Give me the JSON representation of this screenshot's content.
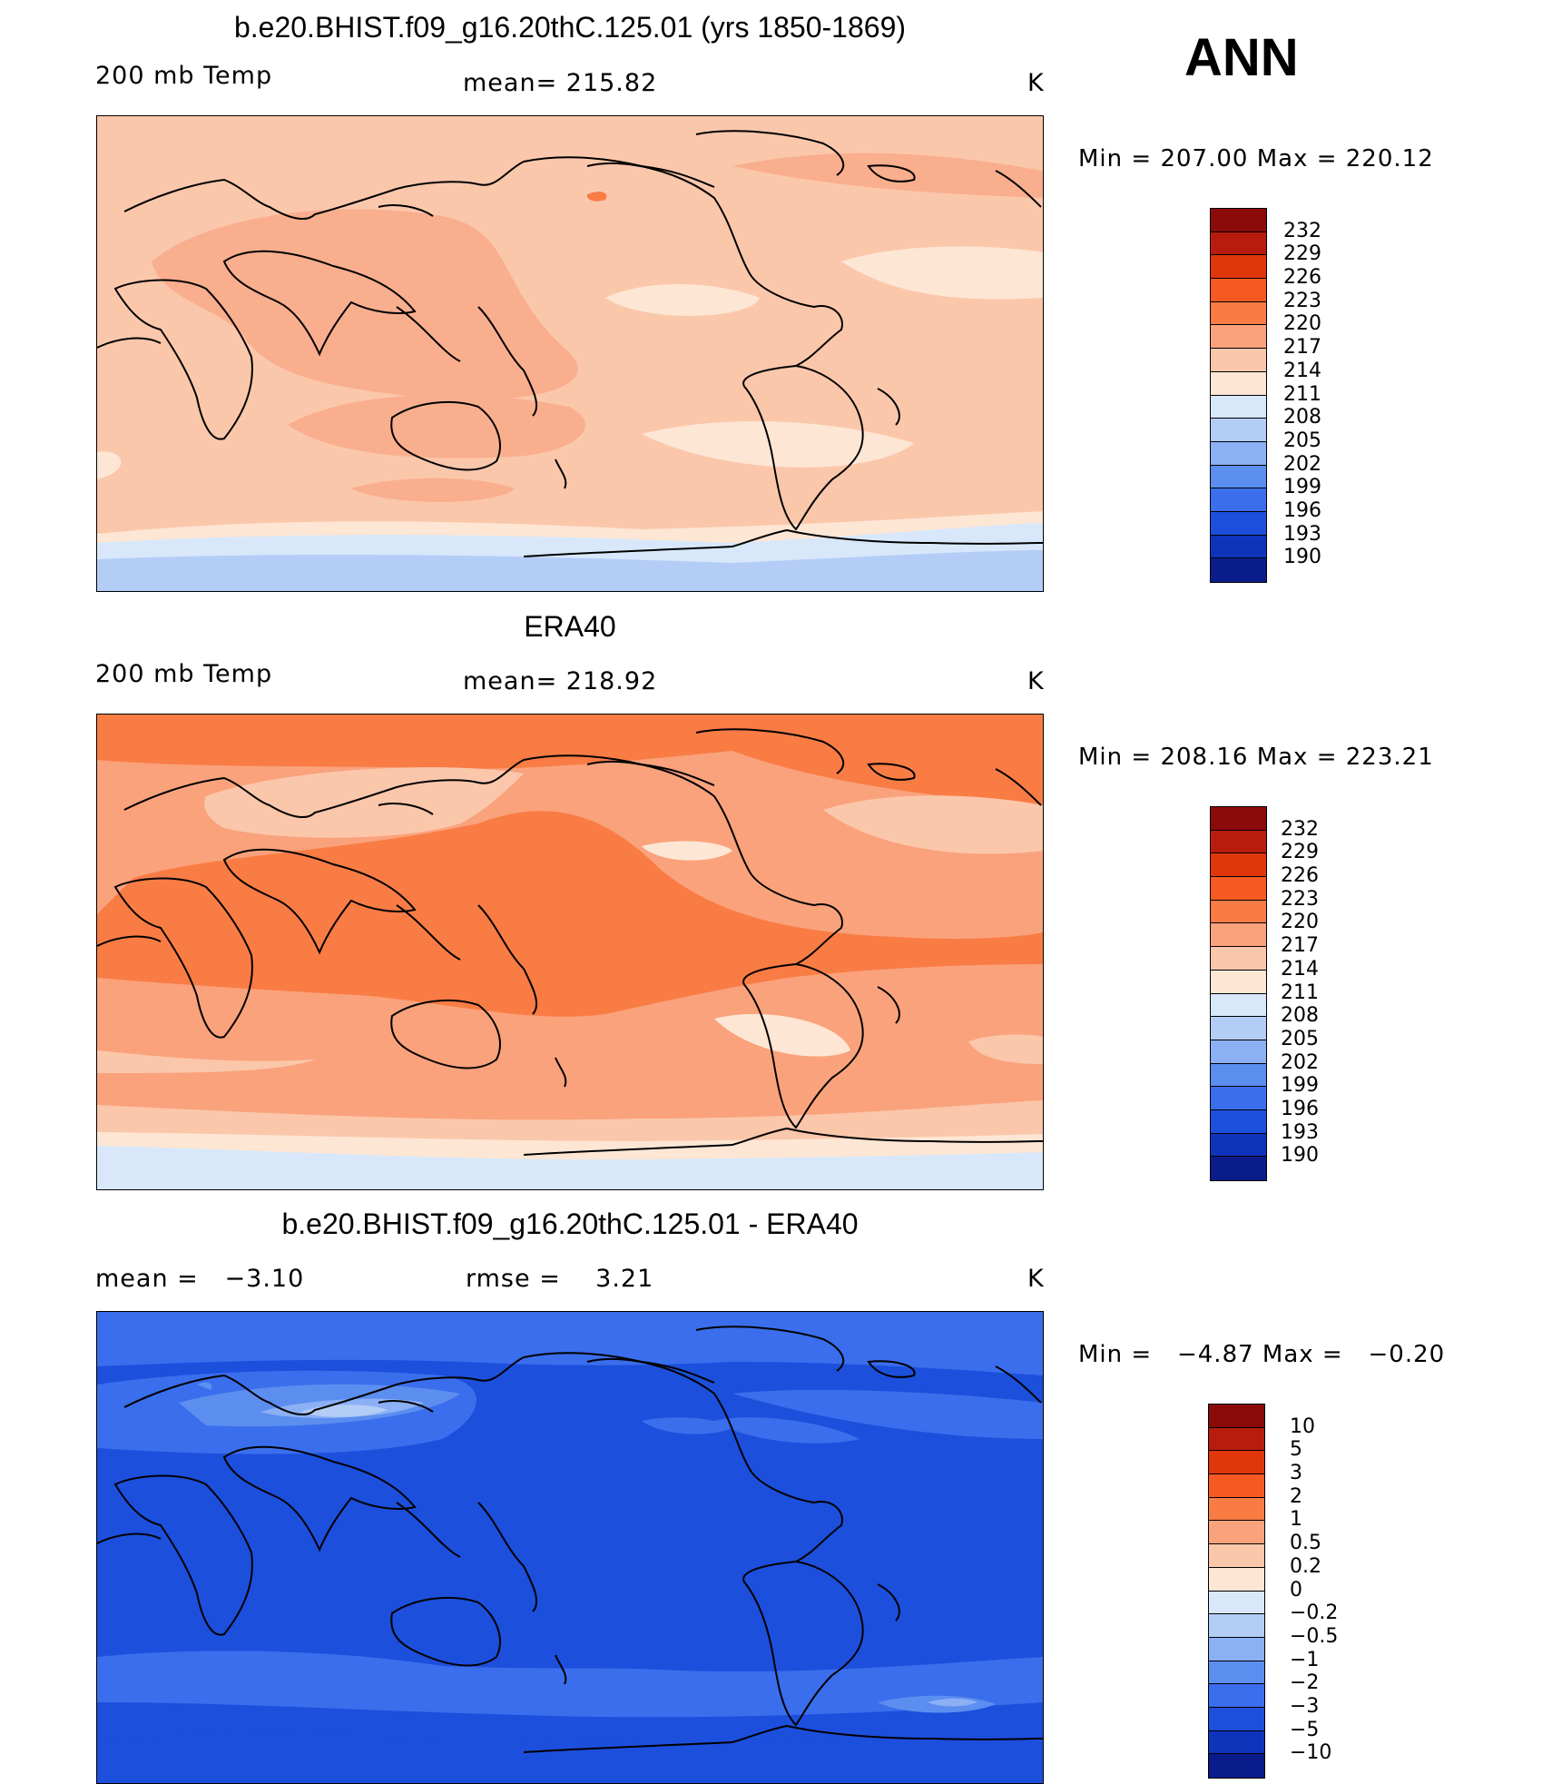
{
  "season": "ANN",
  "panels": [
    {
      "title": "b.e20.BHIST.f09_g16.20thC.125.01 (yrs 1850-1869)",
      "left_label": "200 mb Temp",
      "center_label": "mean= 215.82",
      "units": "K",
      "minmax": "Min = 207.00 Max = 220.12"
    },
    {
      "title": "ERA40",
      "left_label": "200 mb Temp",
      "center_label": "mean= 218.92",
      "units": "K",
      "minmax": "Min = 208.16 Max = 223.21"
    },
    {
      "title": "b.e20.BHIST.f09_g16.20thC.125.01 - ERA40",
      "left_label": "mean =   −3.10",
      "center_label": "rmse =    3.21",
      "units": "K",
      "minmax": "Min =   −4.87 Max =   −0.20"
    }
  ],
  "colorbar_abs": {
    "levels": [
      "232",
      "229",
      "226",
      "223",
      "220",
      "217",
      "214",
      "211",
      "208",
      "205",
      "202",
      "199",
      "196",
      "193",
      "190"
    ],
    "colors": [
      "#8b0a0a",
      "#b81c0c",
      "#e0360c",
      "#f65a22",
      "#f97c45",
      "#faa27c",
      "#fbc7ab",
      "#fde6d4",
      "#d8e8fa",
      "#b4cdf7",
      "#8cb0f4",
      "#5c8ef0",
      "#3a6eec",
      "#1c4fdc",
      "#0f34bc",
      "#0a1c8c"
    ]
  },
  "colorbar_diff": {
    "levels": [
      "10",
      "5",
      "3",
      "2",
      "1",
      "0.5",
      "0.2",
      "0",
      "−0.2",
      "−0.5",
      "−1",
      "−2",
      "−3",
      "−5",
      "−10"
    ],
    "colors": [
      "#8b0a0a",
      "#b81c0c",
      "#e0360c",
      "#f65a22",
      "#f97c45",
      "#faa27c",
      "#fbc7ab",
      "#fde6d4",
      "#d8e8fa",
      "#b4cdf7",
      "#8cb0f4",
      "#5c8ef0",
      "#3a6eec",
      "#1c4fdc",
      "#0f34bc",
      "#0a1c8c"
    ]
  }
}
